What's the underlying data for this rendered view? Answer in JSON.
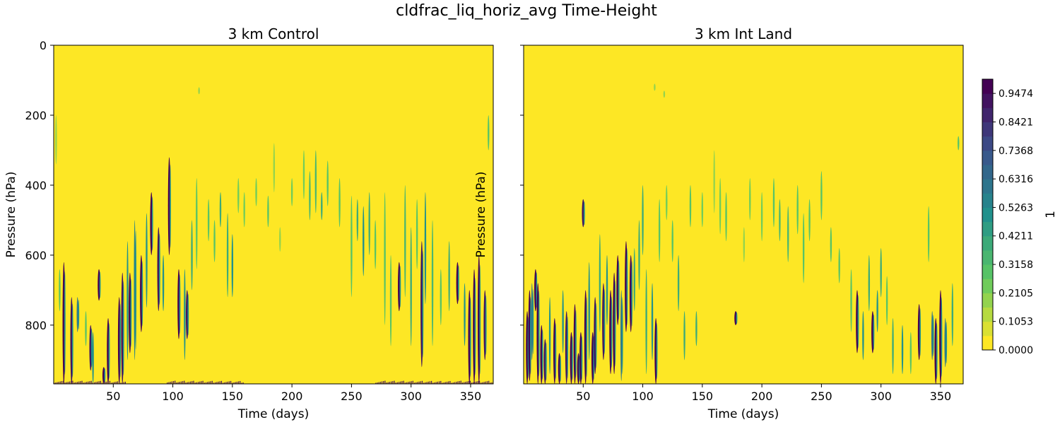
{
  "title": "cldfrac_liq_horiz_avg Time-Height",
  "chart_data": {
    "type": "heatmap",
    "title": "cldfrac_liq_horiz_avg Time-Height",
    "colormap": "viridis_r",
    "colorbar": {
      "label": "1",
      "range": [
        0,
        1
      ],
      "levels": 19,
      "ticks": [
        "0.0000",
        "0.1053",
        "0.2105",
        "0.3158",
        "0.4211",
        "0.5263",
        "0.6316",
        "0.7368",
        "0.8421",
        "0.9474"
      ]
    },
    "xlim": [
      0,
      369
    ],
    "ylim": [
      968,
      0
    ],
    "xticks": [
      "50",
      "100",
      "150",
      "200",
      "250",
      "300",
      "350"
    ],
    "yticks": [
      "0",
      "200",
      "400",
      "600",
      "800"
    ],
    "streak_format": [
      "day",
      "pressure_top_hPa",
      "pressure_bottom_hPa",
      "cloud_fraction"
    ],
    "panels": [
      {
        "title": "3 km Control",
        "xlabel": "Time (days)",
        "ylabel": "Pressure (hPa)",
        "background_value": 0,
        "surface_fringe_days": [
          [
            0,
            60
          ],
          [
            95,
            160
          ],
          [
            270,
            368
          ]
        ],
        "streaks": [
          [
            8.5,
            620,
            968,
            0.95
          ],
          [
            15,
            720,
            968,
            0.9
          ],
          [
            20,
            720,
            820,
            0.6
          ],
          [
            31,
            800,
            930,
            0.9
          ],
          [
            33,
            820,
            968,
            0.5
          ],
          [
            38,
            640,
            730,
            0.95
          ],
          [
            42,
            920,
            968,
            0.95
          ],
          [
            45.7,
            780,
            968,
            0.95
          ],
          [
            55,
            720,
            968,
            0.95
          ],
          [
            57.7,
            650,
            968,
            0.9
          ],
          [
            62,
            560,
            900,
            0.5
          ],
          [
            64,
            650,
            880,
            0.95
          ],
          [
            68,
            500,
            900,
            0.55
          ],
          [
            73.5,
            600,
            820,
            0.95
          ],
          [
            78,
            480,
            750,
            0.5
          ],
          [
            82,
            420,
            600,
            0.95
          ],
          [
            88,
            520,
            760,
            0.9
          ],
          [
            92,
            600,
            760,
            0.5
          ],
          [
            97,
            320,
            600,
            0.95
          ],
          [
            105,
            640,
            840,
            0.95
          ],
          [
            110,
            640,
            900,
            0.5
          ],
          [
            112,
            700,
            840,
            0.9
          ],
          [
            116,
            500,
            700,
            0.4
          ],
          [
            120,
            380,
            640,
            0.3
          ],
          [
            130,
            440,
            560,
            0.3
          ],
          [
            135,
            500,
            620,
            0.3
          ],
          [
            140,
            420,
            520,
            0.4
          ],
          [
            146,
            480,
            720,
            0.4
          ],
          [
            150,
            540,
            720,
            0.5
          ],
          [
            155,
            380,
            480,
            0.25
          ],
          [
            160,
            420,
            520,
            0.25
          ],
          [
            170,
            380,
            460,
            0.25
          ],
          [
            180,
            430,
            520,
            0.3
          ],
          [
            185,
            280,
            420,
            0.2
          ],
          [
            190,
            520,
            590,
            0.2
          ],
          [
            200,
            380,
            460,
            0.25
          ],
          [
            210,
            300,
            440,
            0.25
          ],
          [
            215,
            360,
            500,
            0.35
          ],
          [
            220,
            300,
            480,
            0.35
          ],
          [
            225,
            420,
            500,
            0.4
          ],
          [
            230,
            330,
            460,
            0.3
          ],
          [
            240,
            380,
            520,
            0.3
          ],
          [
            250,
            430,
            720,
            0.3
          ],
          [
            255,
            440,
            560,
            0.4
          ],
          [
            260,
            460,
            660,
            0.5
          ],
          [
            265,
            420,
            600,
            0.4
          ],
          [
            270,
            500,
            640,
            0.3
          ],
          [
            278,
            420,
            800,
            0.3
          ],
          [
            283,
            600,
            860,
            0.3
          ],
          [
            290,
            620,
            760,
            0.95
          ],
          [
            295,
            400,
            720,
            0.35
          ],
          [
            300,
            520,
            860,
            0.4
          ],
          [
            305,
            440,
            640,
            0.3
          ],
          [
            309,
            560,
            920,
            0.9
          ],
          [
            312,
            420,
            740,
            0.5
          ],
          [
            318,
            500,
            860,
            0.35
          ],
          [
            325,
            640,
            800,
            0.3
          ],
          [
            332,
            560,
            760,
            0.4
          ],
          [
            339,
            620,
            740,
            0.95
          ],
          [
            345,
            680,
            860,
            0.5
          ],
          [
            349,
            700,
            968,
            0.95
          ],
          [
            353,
            640,
            968,
            0.95
          ],
          [
            357,
            600,
            968,
            0.95
          ],
          [
            362,
            700,
            900,
            0.9
          ],
          [
            365,
            200,
            300,
            0.3
          ],
          [
            122,
            120,
            140,
            0.2
          ],
          [
            2,
            200,
            340,
            0.2
          ],
          [
            5,
            640,
            760,
            0.3
          ],
          [
            27,
            760,
            860,
            0.3
          ]
        ]
      },
      {
        "title": "3 km Int Land",
        "xlabel": "Time (days)",
        "ylabel": "Pressure (hPa)",
        "background_value": 0,
        "surface_fringe_days": [],
        "streaks": [
          [
            3,
            760,
            968,
            0.95
          ],
          [
            5,
            700,
            960,
            0.95
          ],
          [
            7,
            680,
            900,
            0.6
          ],
          [
            10,
            640,
            760,
            0.95
          ],
          [
            12,
            680,
            968,
            0.95
          ],
          [
            15,
            800,
            968,
            0.95
          ],
          [
            18,
            840,
            968,
            0.9
          ],
          [
            22,
            720,
            940,
            0.5
          ],
          [
            26,
            780,
            968,
            0.95
          ],
          [
            30,
            880,
            968,
            0.95
          ],
          [
            33,
            700,
            880,
            0.5
          ],
          [
            36,
            760,
            968,
            0.9
          ],
          [
            40,
            820,
            968,
            0.95
          ],
          [
            43,
            740,
            968,
            0.95
          ],
          [
            46,
            880,
            968,
            0.95
          ],
          [
            48,
            820,
            968,
            0.95
          ],
          [
            50,
            440,
            520,
            0.9
          ],
          [
            52,
            700,
            968,
            0.95
          ],
          [
            55,
            620,
            900,
            0.5
          ],
          [
            58,
            820,
            968,
            0.95
          ],
          [
            60,
            720,
            940,
            0.9
          ],
          [
            64,
            540,
            820,
            0.4
          ],
          [
            67,
            680,
            900,
            0.9
          ],
          [
            70,
            600,
            800,
            0.5
          ],
          [
            73,
            700,
            940,
            0.95
          ],
          [
            76,
            650,
            940,
            0.95
          ],
          [
            79,
            600,
            800,
            0.95
          ],
          [
            82,
            700,
            960,
            0.6
          ],
          [
            86,
            560,
            820,
            0.95
          ],
          [
            90,
            600,
            820,
            0.95
          ],
          [
            93,
            580,
            760,
            0.4
          ],
          [
            97,
            500,
            700,
            0.4
          ],
          [
            100,
            400,
            600,
            0.4
          ],
          [
            103,
            640,
            940,
            0.4
          ],
          [
            108,
            680,
            900,
            0.5
          ],
          [
            111,
            780,
            968,
            0.95
          ],
          [
            114,
            440,
            620,
            0.3
          ],
          [
            120,
            400,
            500,
            0.25
          ],
          [
            125,
            500,
            620,
            0.3
          ],
          [
            130,
            600,
            760,
            0.4
          ],
          [
            135,
            760,
            900,
            0.4
          ],
          [
            140,
            400,
            520,
            0.3
          ],
          [
            145,
            760,
            860,
            0.4
          ],
          [
            150,
            420,
            520,
            0.25
          ],
          [
            160,
            300,
            480,
            0.2
          ],
          [
            165,
            380,
            540,
            0.25
          ],
          [
            170,
            420,
            560,
            0.3
          ],
          [
            178,
            760,
            800,
            0.95
          ],
          [
            185,
            520,
            620,
            0.2
          ],
          [
            190,
            380,
            500,
            0.25
          ],
          [
            200,
            420,
            560,
            0.25
          ],
          [
            210,
            380,
            520,
            0.3
          ],
          [
            215,
            440,
            560,
            0.35
          ],
          [
            222,
            460,
            620,
            0.35
          ],
          [
            230,
            400,
            540,
            0.3
          ],
          [
            235,
            480,
            680,
            0.3
          ],
          [
            240,
            440,
            560,
            0.3
          ],
          [
            250,
            360,
            500,
            0.3
          ],
          [
            258,
            520,
            620,
            0.3
          ],
          [
            265,
            580,
            680,
            0.3
          ],
          [
            275,
            640,
            820,
            0.3
          ],
          [
            280,
            700,
            880,
            0.95
          ],
          [
            285,
            760,
            900,
            0.5
          ],
          [
            290,
            600,
            760,
            0.4
          ],
          [
            293,
            760,
            880,
            0.95
          ],
          [
            297,
            700,
            820,
            0.5
          ],
          [
            300,
            580,
            720,
            0.4
          ],
          [
            305,
            660,
            800,
            0.3
          ],
          [
            310,
            780,
            940,
            0.4
          ],
          [
            318,
            800,
            940,
            0.5
          ],
          [
            325,
            820,
            940,
            0.3
          ],
          [
            332,
            740,
            900,
            0.95
          ],
          [
            340,
            460,
            620,
            0.3
          ],
          [
            343,
            760,
            900,
            0.6
          ],
          [
            346,
            780,
            968,
            0.95
          ],
          [
            350,
            700,
            968,
            0.95
          ],
          [
            354,
            780,
            920,
            0.6
          ],
          [
            360,
            680,
            860,
            0.4
          ],
          [
            110,
            110,
            130,
            0.2
          ],
          [
            118,
            130,
            150,
            0.2
          ],
          [
            365,
            260,
            300,
            0.3
          ]
        ]
      }
    ]
  }
}
